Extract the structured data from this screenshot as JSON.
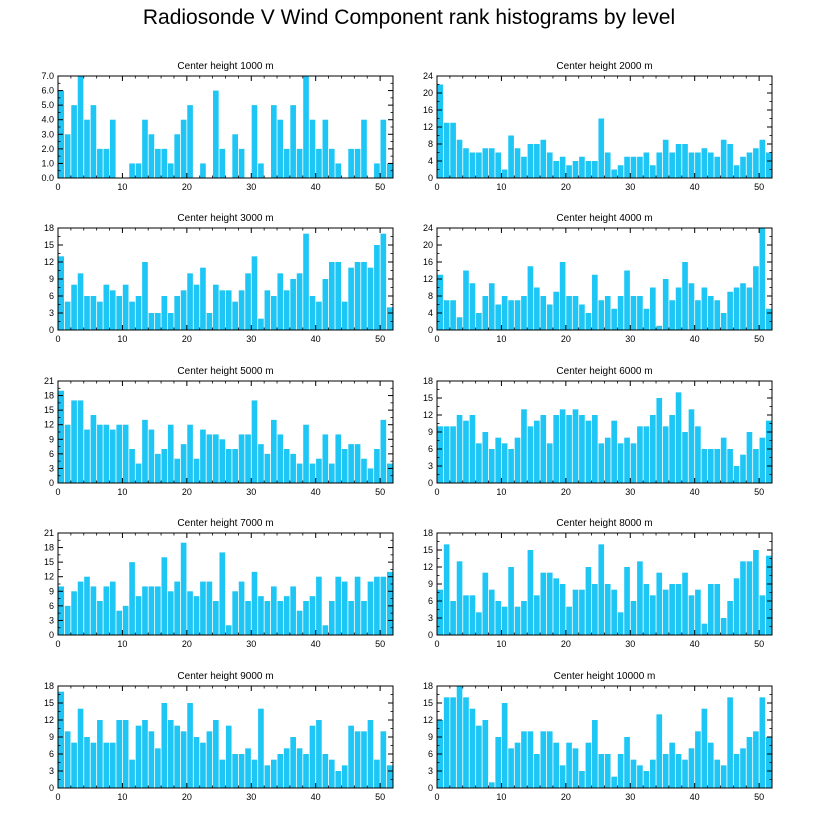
{
  "title": "Radiosonde V Wind Component rank histograms by level",
  "colors": {
    "bar": "#1ec6f6",
    "axis": "#000000"
  },
  "chart_data": [
    {
      "type": "bar",
      "title": "Center height 1000 m",
      "x": [
        0,
        1,
        2,
        3,
        4,
        5,
        6,
        7,
        8,
        9,
        10,
        11,
        12,
        13,
        14,
        15,
        16,
        17,
        18,
        19,
        20,
        21,
        22,
        23,
        24,
        25,
        26,
        27,
        28,
        29,
        30,
        31,
        32,
        33,
        34,
        35,
        36,
        37,
        38,
        39,
        40,
        41,
        42,
        43,
        44,
        45,
        46,
        47,
        48,
        49,
        50,
        51
      ],
      "values": [
        6,
        3,
        5,
        7,
        4,
        5,
        2,
        2,
        4,
        0,
        0,
        1,
        1,
        4,
        3,
        2,
        2,
        1,
        3,
        4,
        5,
        0,
        1,
        0,
        6,
        2,
        0,
        3,
        2,
        0,
        5,
        1,
        0,
        5,
        4,
        2,
        5,
        2,
        7,
        4,
        2,
        4,
        2,
        1,
        0,
        2,
        2,
        4,
        0,
        1,
        4,
        1
      ],
      "xlim": [
        0,
        52
      ],
      "ylim": [
        0,
        7
      ],
      "xticks": [
        0,
        10,
        20,
        30,
        40,
        50
      ],
      "yticks": [
        0,
        1,
        2,
        3,
        4,
        5,
        6,
        7
      ],
      "yticklabels": [
        "0.0",
        "1.0",
        "2.0",
        "3.0",
        "4.0",
        "5.0",
        "6.0",
        "7.0"
      ],
      "ytick_side": "left"
    },
    {
      "type": "bar",
      "title": "Center height 2000 m",
      "x": [
        0,
        1,
        2,
        3,
        4,
        5,
        6,
        7,
        8,
        9,
        10,
        11,
        12,
        13,
        14,
        15,
        16,
        17,
        18,
        19,
        20,
        21,
        22,
        23,
        24,
        25,
        26,
        27,
        28,
        29,
        30,
        31,
        32,
        33,
        34,
        35,
        36,
        37,
        38,
        39,
        40,
        41,
        42,
        43,
        44,
        45,
        46,
        47,
        48,
        49,
        50,
        51
      ],
      "values": [
        22,
        13,
        13,
        9,
        7,
        6,
        6,
        7,
        7,
        6,
        2,
        10,
        7,
        5,
        8,
        8,
        9,
        6,
        4,
        5,
        3,
        4,
        5,
        4,
        4,
        14,
        6,
        2,
        3,
        5,
        5,
        5,
        6,
        3,
        6,
        9,
        6,
        8,
        8,
        6,
        6,
        7,
        6,
        5,
        9,
        8,
        3,
        5,
        6,
        7,
        9,
        6
      ],
      "xlim": [
        0,
        52
      ],
      "ylim": [
        0,
        24
      ],
      "xticks": [
        0,
        10,
        20,
        30,
        40,
        50
      ],
      "yticks": [
        0,
        4,
        8,
        12,
        16,
        20,
        24
      ],
      "yticklabels": [
        "0",
        "4",
        "8",
        "12",
        "16",
        "20",
        "24"
      ],
      "ytick_side": "left"
    },
    {
      "type": "bar",
      "title": "Center height 3000 m",
      "x": [
        0,
        1,
        2,
        3,
        4,
        5,
        6,
        7,
        8,
        9,
        10,
        11,
        12,
        13,
        14,
        15,
        16,
        17,
        18,
        19,
        20,
        21,
        22,
        23,
        24,
        25,
        26,
        27,
        28,
        29,
        30,
        31,
        32,
        33,
        34,
        35,
        36,
        37,
        38,
        39,
        40,
        41,
        42,
        43,
        44,
        45,
        46,
        47,
        48,
        49,
        50,
        51
      ],
      "values": [
        13,
        5,
        8,
        10,
        6,
        6,
        5,
        8,
        7,
        6,
        8,
        5,
        6,
        12,
        3,
        3,
        6,
        3,
        6,
        7,
        10,
        8,
        11,
        3,
        8,
        7,
        7,
        5,
        7,
        10,
        13,
        2,
        7,
        6,
        10,
        7,
        9,
        10,
        17,
        6,
        5,
        9,
        12,
        12,
        5,
        11,
        12,
        12,
        11,
        15,
        17,
        4
      ],
      "xlim": [
        0,
        52
      ],
      "ylim": [
        0,
        18
      ],
      "xticks": [
        0,
        10,
        20,
        30,
        40,
        50
      ],
      "yticks": [
        0,
        3,
        6,
        9,
        12,
        15,
        18
      ],
      "yticklabels": [
        "0",
        "3",
        "6",
        "9",
        "12",
        "15",
        "18"
      ],
      "ytick_side": "left"
    },
    {
      "type": "bar",
      "title": "Center height 4000 m",
      "x": [
        0,
        1,
        2,
        3,
        4,
        5,
        6,
        7,
        8,
        9,
        10,
        11,
        12,
        13,
        14,
        15,
        16,
        17,
        18,
        19,
        20,
        21,
        22,
        23,
        24,
        25,
        26,
        27,
        28,
        29,
        30,
        31,
        32,
        33,
        34,
        35,
        36,
        37,
        38,
        39,
        40,
        41,
        42,
        43,
        44,
        45,
        46,
        47,
        48,
        49,
        50,
        51
      ],
      "values": [
        13,
        7,
        7,
        3,
        14,
        11,
        4,
        8,
        11,
        6,
        8,
        7,
        7,
        8,
        15,
        10,
        8,
        6,
        9,
        16,
        8,
        8,
        6,
        4,
        13,
        7,
        8,
        5,
        8,
        14,
        8,
        8,
        5,
        10,
        1,
        12,
        7,
        10,
        16,
        11,
        7,
        10,
        8,
        7,
        4,
        9,
        10,
        11,
        10,
        15,
        24,
        5
      ],
      "xlim": [
        0,
        52
      ],
      "ylim": [
        0,
        24
      ],
      "xticks": [
        0,
        10,
        20,
        30,
        40,
        50
      ],
      "yticks": [
        0,
        4,
        8,
        12,
        16,
        20,
        24
      ],
      "yticklabels": [
        "0",
        "4",
        "8",
        "12",
        "16",
        "20",
        "24"
      ],
      "ytick_side": "left"
    },
    {
      "type": "bar",
      "title": "Center height 5000 m",
      "x": [
        0,
        1,
        2,
        3,
        4,
        5,
        6,
        7,
        8,
        9,
        10,
        11,
        12,
        13,
        14,
        15,
        16,
        17,
        18,
        19,
        20,
        21,
        22,
        23,
        24,
        25,
        26,
        27,
        28,
        29,
        30,
        31,
        32,
        33,
        34,
        35,
        36,
        37,
        38,
        39,
        40,
        41,
        42,
        43,
        44,
        45,
        46,
        47,
        48,
        49,
        50,
        51
      ],
      "values": [
        19,
        12,
        17,
        17,
        11,
        14,
        12,
        12,
        11,
        12,
        12,
        7,
        4,
        13,
        11,
        6,
        7,
        12,
        5,
        8,
        12,
        5,
        11,
        10,
        10,
        9,
        7,
        7,
        10,
        10,
        17,
        8,
        6,
        13,
        10,
        7,
        6,
        4,
        12,
        4,
        5,
        10,
        4,
        10,
        7,
        8,
        8,
        5,
        3,
        7,
        13,
        4
      ],
      "xlim": [
        0,
        52
      ],
      "ylim": [
        0,
        21
      ],
      "xticks": [
        0,
        10,
        20,
        30,
        40,
        50
      ],
      "yticks": [
        0,
        3,
        6,
        9,
        12,
        15,
        18,
        21
      ],
      "yticklabels": [
        "0",
        "3",
        "6",
        "9",
        "12",
        "15",
        "18",
        "21"
      ],
      "ytick_side": "left"
    },
    {
      "type": "bar",
      "title": "Center height 6000 m",
      "x": [
        0,
        1,
        2,
        3,
        4,
        5,
        6,
        7,
        8,
        9,
        10,
        11,
        12,
        13,
        14,
        15,
        16,
        17,
        18,
        19,
        20,
        21,
        22,
        23,
        24,
        25,
        26,
        27,
        28,
        29,
        30,
        31,
        32,
        33,
        34,
        35,
        36,
        37,
        38,
        39,
        40,
        41,
        42,
        43,
        44,
        45,
        46,
        47,
        48,
        49,
        50,
        51
      ],
      "values": [
        10,
        10,
        10,
        12,
        11,
        12,
        7,
        9,
        6,
        8,
        7,
        6,
        8,
        13,
        10,
        11,
        12,
        7,
        12,
        13,
        12,
        13,
        12,
        11,
        12,
        7,
        8,
        11,
        7,
        8,
        7,
        10,
        10,
        12,
        15,
        10,
        12,
        16,
        9,
        13,
        10,
        6,
        6,
        6,
        8,
        6,
        3,
        5,
        9,
        6,
        8,
        11
      ],
      "xlim": [
        0,
        52
      ],
      "ylim": [
        0,
        18
      ],
      "xticks": [
        0,
        10,
        20,
        30,
        40,
        50
      ],
      "yticks": [
        0,
        3,
        6,
        9,
        12,
        15,
        18
      ],
      "yticklabels": [
        "0",
        "3",
        "6",
        "9",
        "12",
        "15",
        "18"
      ],
      "ytick_side": "left"
    },
    {
      "type": "bar",
      "title": "Center height 7000 m",
      "x": [
        0,
        1,
        2,
        3,
        4,
        5,
        6,
        7,
        8,
        9,
        10,
        11,
        12,
        13,
        14,
        15,
        16,
        17,
        18,
        19,
        20,
        21,
        22,
        23,
        24,
        25,
        26,
        27,
        28,
        29,
        30,
        31,
        32,
        33,
        34,
        35,
        36,
        37,
        38,
        39,
        40,
        41,
        42,
        43,
        44,
        45,
        46,
        47,
        48,
        49,
        50,
        51
      ],
      "values": [
        10,
        6,
        9,
        11,
        12,
        10,
        7,
        10,
        11,
        5,
        6,
        15,
        8,
        10,
        10,
        10,
        16,
        9,
        11,
        19,
        9,
        8,
        11,
        11,
        7,
        17,
        2,
        9,
        11,
        7,
        13,
        8,
        7,
        10,
        7,
        8,
        10,
        5,
        7,
        8,
        12,
        2,
        7,
        12,
        11,
        7,
        12,
        7,
        11,
        12,
        12,
        13
      ],
      "xlim": [
        0,
        52
      ],
      "ylim": [
        0,
        21
      ],
      "xticks": [
        0,
        10,
        20,
        30,
        40,
        50
      ],
      "yticks": [
        0,
        3,
        6,
        9,
        12,
        15,
        18,
        21
      ],
      "yticklabels": [
        "0",
        "3",
        "6",
        "9",
        "12",
        "15",
        "18",
        "21"
      ],
      "ytick_side": "left"
    },
    {
      "type": "bar",
      "title": "Center height 8000 m",
      "x": [
        0,
        1,
        2,
        3,
        4,
        5,
        6,
        7,
        8,
        9,
        10,
        11,
        12,
        13,
        14,
        15,
        16,
        17,
        18,
        19,
        20,
        21,
        22,
        23,
        24,
        25,
        26,
        27,
        28,
        29,
        30,
        31,
        32,
        33,
        34,
        35,
        36,
        37,
        38,
        39,
        40,
        41,
        42,
        43,
        44,
        45,
        46,
        47,
        48,
        49,
        50,
        51
      ],
      "values": [
        8,
        16,
        6,
        13,
        7,
        7,
        4,
        11,
        8,
        6,
        5,
        12,
        5,
        6,
        15,
        7,
        11,
        11,
        10,
        9,
        5,
        8,
        8,
        12,
        9,
        16,
        9,
        8,
        4,
        12,
        6,
        13,
        9,
        7,
        11,
        8,
        9,
        9,
        11,
        7,
        8,
        2,
        9,
        9,
        3,
        6,
        10,
        13,
        13,
        15,
        7,
        14
      ],
      "xlim": [
        0,
        52
      ],
      "ylim": [
        0,
        18
      ],
      "xticks": [
        0,
        10,
        20,
        30,
        40,
        50
      ],
      "yticks": [
        0,
        3,
        6,
        9,
        12,
        15,
        18
      ],
      "yticklabels": [
        "0",
        "3",
        "6",
        "9",
        "12",
        "15",
        "18"
      ],
      "ytick_side": "left"
    },
    {
      "type": "bar",
      "title": "Center height 9000 m",
      "x": [
        0,
        1,
        2,
        3,
        4,
        5,
        6,
        7,
        8,
        9,
        10,
        11,
        12,
        13,
        14,
        15,
        16,
        17,
        18,
        19,
        20,
        21,
        22,
        23,
        24,
        25,
        26,
        27,
        28,
        29,
        30,
        31,
        32,
        33,
        34,
        35,
        36,
        37,
        38,
        39,
        40,
        41,
        42,
        43,
        44,
        45,
        46,
        47,
        48,
        49,
        50,
        51
      ],
      "values": [
        17,
        10,
        8,
        14,
        9,
        8,
        12,
        8,
        8,
        12,
        12,
        5,
        11,
        12,
        10,
        7,
        15,
        12,
        11,
        10,
        15,
        9,
        8,
        10,
        12,
        5,
        11,
        6,
        6,
        7,
        5,
        14,
        4,
        5,
        6,
        7,
        9,
        7,
        6,
        11,
        12,
        6,
        5,
        3,
        4,
        11,
        10,
        10,
        12,
        5,
        10,
        4
      ],
      "xlim": [
        0,
        52
      ],
      "ylim": [
        0,
        18
      ],
      "xticks": [
        0,
        10,
        20,
        30,
        40,
        50
      ],
      "yticks": [
        0,
        3,
        6,
        9,
        12,
        15,
        18
      ],
      "yticklabels": [
        "0",
        "3",
        "6",
        "9",
        "12",
        "15",
        "18"
      ],
      "ytick_side": "left"
    },
    {
      "type": "bar",
      "title": "Center height 10000 m",
      "x": [
        0,
        1,
        2,
        3,
        4,
        5,
        6,
        7,
        8,
        9,
        10,
        11,
        12,
        13,
        14,
        15,
        16,
        17,
        18,
        19,
        20,
        21,
        22,
        23,
        24,
        25,
        26,
        27,
        28,
        29,
        30,
        31,
        32,
        33,
        34,
        35,
        36,
        37,
        38,
        39,
        40,
        41,
        42,
        43,
        44,
        45,
        46,
        47,
        48,
        49,
        50,
        51
      ],
      "values": [
        12,
        16,
        16,
        18,
        16,
        14,
        11,
        12,
        1,
        9,
        15,
        7,
        8,
        10,
        10,
        6,
        10,
        10,
        8,
        4,
        8,
        7,
        3,
        8,
        12,
        6,
        6,
        2,
        6,
        9,
        5,
        4,
        3,
        5,
        13,
        6,
        8,
        6,
        5,
        7,
        10,
        14,
        8,
        5,
        4,
        16,
        6,
        7,
        9,
        10,
        16,
        9
      ],
      "xlim": [
        0,
        52
      ],
      "ylim": [
        0,
        18
      ],
      "xticks": [
        0,
        10,
        20,
        30,
        40,
        50
      ],
      "yticks": [
        0,
        3,
        6,
        9,
        12,
        15,
        18
      ],
      "yticklabels": [
        "0",
        "3",
        "6",
        "9",
        "12",
        "15",
        "18"
      ],
      "ytick_side": "left"
    }
  ]
}
